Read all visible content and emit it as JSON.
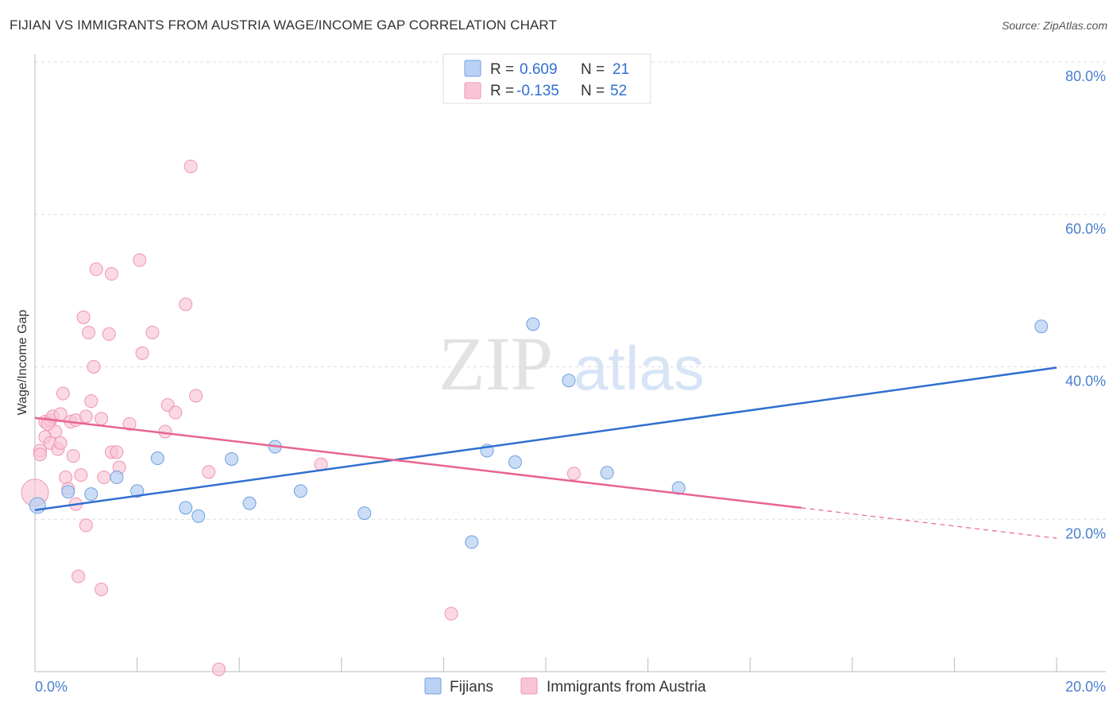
{
  "header": {
    "title": "FIJIAN VS IMMIGRANTS FROM AUSTRIA WAGE/INCOME GAP CORRELATION CHART",
    "source": "Source: ZipAtlas.com"
  },
  "watermark": {
    "zip": "ZIP",
    "atlas": "atlas"
  },
  "legend": {
    "rows": [
      {
        "r_label": "R =",
        "r_value": "0.609",
        "n_label": "N =",
        "n_value": "21"
      },
      {
        "r_label": "R =",
        "r_value": "-0.135",
        "n_label": "N =",
        "n_value": "52"
      }
    ]
  },
  "colors": {
    "fijians_fill": "#b9d2f3",
    "fijians_stroke": "#6e9fe0",
    "fijians_line": "#2f6fd0",
    "austria_fill": "#f9c5d5",
    "austria_stroke": "#ee95b1",
    "austria_line": "#e8648f",
    "grid": "#dddddd",
    "axis_label": "#4a7fd0"
  },
  "chart_data": {
    "type": "scatter",
    "title": "FIJIAN VS IMMIGRANTS FROM AUSTRIA WAGE/INCOME GAP CORRELATION CHART",
    "ylabel": "Wage/Income Gap",
    "xlim": [
      0,
      20
    ],
    "ylim": [
      0,
      80
    ],
    "x_tick_labels": [
      "0.0%",
      "20.0%"
    ],
    "y_tick_labels": [
      "20.0%",
      "40.0%",
      "60.0%",
      "80.0%"
    ],
    "y_ticks": [
      20,
      40,
      60,
      80
    ],
    "grid": true,
    "legend_position": "top-center",
    "series": [
      {
        "name": "Fijians",
        "R": 0.609,
        "N": 21,
        "trend": {
          "x": [
            0,
            20
          ],
          "y": [
            21.2,
            39.9
          ]
        },
        "points": [
          {
            "x": 0.05,
            "y": 21.8
          },
          {
            "x": 0.65,
            "y": 23.6
          },
          {
            "x": 1.1,
            "y": 23.3
          },
          {
            "x": 1.6,
            "y": 25.5
          },
          {
            "x": 2.0,
            "y": 23.7
          },
          {
            "x": 2.4,
            "y": 28.0
          },
          {
            "x": 2.95,
            "y": 21.5
          },
          {
            "x": 3.2,
            "y": 20.4
          },
          {
            "x": 3.85,
            "y": 27.9
          },
          {
            "x": 4.2,
            "y": 22.1
          },
          {
            "x": 4.7,
            "y": 29.5
          },
          {
            "x": 5.2,
            "y": 23.7
          },
          {
            "x": 6.45,
            "y": 20.8
          },
          {
            "x": 8.55,
            "y": 17.0
          },
          {
            "x": 8.85,
            "y": 29.0
          },
          {
            "x": 9.4,
            "y": 27.5
          },
          {
            "x": 9.75,
            "y": 45.6
          },
          {
            "x": 10.45,
            "y": 38.2
          },
          {
            "x": 11.2,
            "y": 26.1
          },
          {
            "x": 12.6,
            "y": 24.1
          },
          {
            "x": 19.7,
            "y": 45.3
          }
        ]
      },
      {
        "name": "Immigrants from Austria",
        "R": -0.135,
        "N": 52,
        "trend": {
          "x": [
            0,
            15
          ],
          "y": [
            33.3,
            21.5
          ],
          "dashed_to": {
            "x": 20,
            "y": 17.5
          }
        },
        "points": [
          {
            "x": 0.0,
            "y": 23.5
          },
          {
            "x": 0.1,
            "y": 29.0
          },
          {
            "x": 0.1,
            "y": 28.5
          },
          {
            "x": 0.2,
            "y": 32.8
          },
          {
            "x": 0.2,
            "y": 30.8
          },
          {
            "x": 0.3,
            "y": 33.0
          },
          {
            "x": 0.3,
            "y": 30.0
          },
          {
            "x": 0.35,
            "y": 33.5
          },
          {
            "x": 0.4,
            "y": 31.5
          },
          {
            "x": 0.45,
            "y": 29.2
          },
          {
            "x": 0.5,
            "y": 30.0
          },
          {
            "x": 0.5,
            "y": 33.8
          },
          {
            "x": 0.55,
            "y": 36.5
          },
          {
            "x": 0.6,
            "y": 25.5
          },
          {
            "x": 0.65,
            "y": 24.0
          },
          {
            "x": 0.7,
            "y": 32.8
          },
          {
            "x": 0.75,
            "y": 28.3
          },
          {
            "x": 0.8,
            "y": 33.0
          },
          {
            "x": 0.8,
            "y": 22.0
          },
          {
            "x": 0.85,
            "y": 12.5
          },
          {
            "x": 0.9,
            "y": 25.8
          },
          {
            "x": 0.95,
            "y": 46.5
          },
          {
            "x": 1.0,
            "y": 33.5
          },
          {
            "x": 1.0,
            "y": 19.2
          },
          {
            "x": 1.05,
            "y": 44.5
          },
          {
            "x": 1.1,
            "y": 35.5
          },
          {
            "x": 1.15,
            "y": 40.0
          },
          {
            "x": 1.2,
            "y": 52.8
          },
          {
            "x": 1.3,
            "y": 10.8
          },
          {
            "x": 1.3,
            "y": 33.2
          },
          {
            "x": 1.35,
            "y": 25.5
          },
          {
            "x": 1.45,
            "y": 44.3
          },
          {
            "x": 1.5,
            "y": 52.2
          },
          {
            "x": 1.5,
            "y": 28.8
          },
          {
            "x": 1.6,
            "y": 28.8
          },
          {
            "x": 1.65,
            "y": 26.8
          },
          {
            "x": 1.85,
            "y": 32.5
          },
          {
            "x": 2.05,
            "y": 54.0
          },
          {
            "x": 2.1,
            "y": 41.8
          },
          {
            "x": 2.3,
            "y": 44.5
          },
          {
            "x": 2.55,
            "y": 31.5
          },
          {
            "x": 2.6,
            "y": 35.0
          },
          {
            "x": 2.75,
            "y": 34.0
          },
          {
            "x": 2.95,
            "y": 48.2
          },
          {
            "x": 3.05,
            "y": 66.3
          },
          {
            "x": 3.15,
            "y": 36.2
          },
          {
            "x": 3.4,
            "y": 26.2
          },
          {
            "x": 3.6,
            "y": 0.3
          },
          {
            "x": 5.6,
            "y": 27.2
          },
          {
            "x": 8.15,
            "y": 7.6
          },
          {
            "x": 10.55,
            "y": 26.0
          },
          {
            "x": 0.25,
            "y": 32.5
          }
        ]
      }
    ]
  }
}
